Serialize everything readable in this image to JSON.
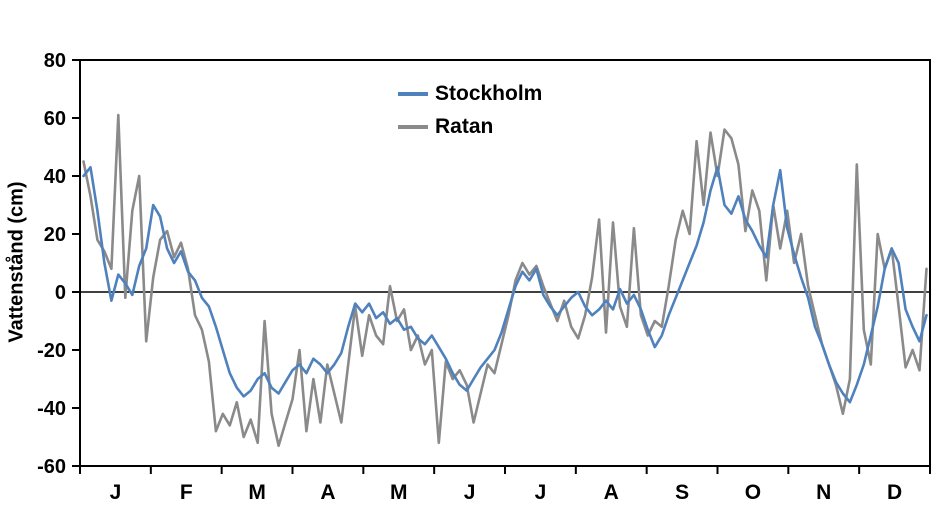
{
  "chart_data": {
    "type": "line",
    "title": "",
    "xlabel": "",
    "ylabel": "Vattenstånd (cm)",
    "ylim": [
      -60,
      80
    ],
    "yticks": [
      80,
      60,
      40,
      20,
      0,
      -20,
      -40,
      -60
    ],
    "month_labels": [
      "J",
      "F",
      "M",
      "A",
      "M",
      "J",
      "J",
      "A",
      "S",
      "O",
      "N",
      "D"
    ],
    "grid": false,
    "zero_line": true,
    "legend_position": "top-center",
    "axis_color": "#000000",
    "sample_interval_days": 3,
    "series": [
      {
        "name": "Stockholm",
        "color": "#4f81bd",
        "values": [
          40,
          43,
          28,
          10,
          -3,
          6,
          3,
          -1,
          9,
          15,
          30,
          26,
          15,
          10,
          14,
          7,
          4,
          -2,
          -5,
          -12,
          -20,
          -28,
          -33,
          -36,
          -34,
          -30,
          -28,
          -33,
          -35,
          -31,
          -27,
          -25,
          -28,
          -23,
          -25,
          -28,
          -25,
          -21,
          -12,
          -4,
          -7,
          -4,
          -9,
          -7,
          -11,
          -9,
          -13,
          -12,
          -16,
          -18,
          -15,
          -19,
          -23,
          -28,
          -32,
          -34,
          -30,
          -26,
          -23,
          -20,
          -14,
          -6,
          2,
          7,
          4,
          8,
          -1,
          -5,
          -8,
          -5,
          -2,
          0,
          -5,
          -8,
          -6,
          -3,
          -6,
          1,
          -4,
          -1,
          -6,
          -13,
          -19,
          -15,
          -8,
          -2,
          4,
          10,
          16,
          24,
          35,
          43,
          30,
          27,
          33,
          25,
          21,
          16,
          12,
          30,
          42,
          22,
          13,
          5,
          -2,
          -12,
          -18,
          -25,
          -31,
          -35,
          -38,
          -32,
          -25,
          -15,
          -5,
          8,
          15,
          10,
          -6,
          -12,
          -17,
          -8
        ]
      },
      {
        "name": "Ratan",
        "color": "#8a8a8a",
        "values": [
          45,
          33,
          18,
          14,
          8,
          61,
          -2,
          28,
          40,
          -17,
          5,
          18,
          21,
          12,
          17,
          8,
          -8,
          -13,
          -24,
          -48,
          -42,
          -46,
          -38,
          -50,
          -44,
          -52,
          -10,
          -42,
          -53,
          -45,
          -37,
          -20,
          -48,
          -30,
          -45,
          -25,
          -35,
          -45,
          -25,
          -5,
          -22,
          -8,
          -15,
          -18,
          2,
          -10,
          -6,
          -20,
          -15,
          -25,
          -20,
          -52,
          -24,
          -30,
          -27,
          -32,
          -45,
          -35,
          -25,
          -28,
          -18,
          -8,
          4,
          10,
          6,
          9,
          2,
          -4,
          -10,
          -3,
          -12,
          -16,
          -8,
          5,
          25,
          -14,
          24,
          -5,
          -12,
          22,
          -8,
          -15,
          -10,
          -12,
          2,
          18,
          28,
          20,
          52,
          30,
          55,
          40,
          56,
          53,
          44,
          21,
          35,
          28,
          4,
          30,
          15,
          28,
          10,
          20,
          2,
          -8,
          -18,
          -25,
          -32,
          -42,
          -30,
          44,
          -13,
          -25,
          20,
          8,
          15,
          -5,
          -26,
          -20,
          -27,
          8
        ]
      }
    ]
  },
  "legend": {
    "items": [
      {
        "label": "Stockholm",
        "color": "#4f81bd"
      },
      {
        "label": "Ratan",
        "color": "#8a8a8a"
      }
    ]
  }
}
